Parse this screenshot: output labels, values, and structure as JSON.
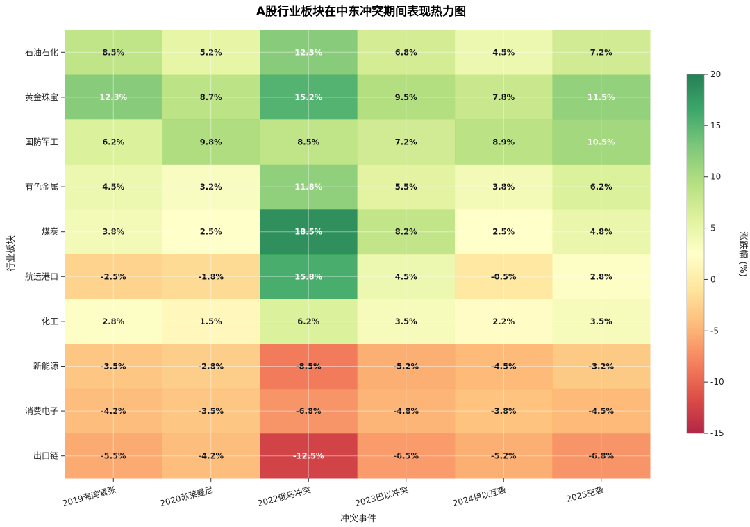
{
  "chart_data": {
    "type": "heatmap",
    "title": "A股行业板块在中东冲突期间表现热力图",
    "xlabel": "冲突事件",
    "ylabel": "行业板块",
    "colorbar_label": "涨跌幅 (%)",
    "colorbar_range": [
      -15,
      20
    ],
    "colorbar_ticks": [
      "20",
      "15",
      "10",
      "5",
      "0",
      "-5",
      "-10",
      "-15"
    ],
    "colorbar_tick_values": [
      20,
      15,
      10,
      5,
      0,
      -5,
      -10,
      -15
    ],
    "grid": true,
    "columns": [
      "2019海湾紧张",
      "2020苏莱曼尼",
      "2022俄乌冲突",
      "2023巴以冲突",
      "2024伊以互袭",
      "2025空袭"
    ],
    "rows": [
      "石油石化",
      "黄金珠宝",
      "国防军工",
      "有色金属",
      "煤炭",
      "航运港口",
      "化工",
      "新能源",
      "消费电子",
      "出口链"
    ],
    "values": [
      [
        8.5,
        5.2,
        12.3,
        6.8,
        4.5,
        7.2
      ],
      [
        12.3,
        8.7,
        15.2,
        9.5,
        7.8,
        11.5
      ],
      [
        6.2,
        9.8,
        8.5,
        7.2,
        8.9,
        10.5
      ],
      [
        4.5,
        3.2,
        11.8,
        5.5,
        3.8,
        6.2
      ],
      [
        3.8,
        2.5,
        18.5,
        8.2,
        2.5,
        4.8
      ],
      [
        -2.5,
        -1.8,
        15.8,
        4.5,
        -0.5,
        2.8
      ],
      [
        2.8,
        1.5,
        6.2,
        3.5,
        2.2,
        3.5
      ],
      [
        -3.5,
        -2.8,
        -8.5,
        -5.2,
        -4.5,
        -3.2
      ],
      [
        -4.2,
        -3.5,
        -6.8,
        -4.8,
        -3.8,
        -4.5
      ],
      [
        -5.5,
        -4.2,
        -12.5,
        -6.5,
        -5.2,
        -6.8
      ]
    ],
    "cell_labels": [
      [
        "8.5%",
        "5.2%",
        "12.3%",
        "6.8%",
        "4.5%",
        "7.2%"
      ],
      [
        "12.3%",
        "8.7%",
        "15.2%",
        "9.5%",
        "7.8%",
        "11.5%"
      ],
      [
        "6.2%",
        "9.8%",
        "8.5%",
        "7.2%",
        "8.9%",
        "10.5%"
      ],
      [
        "4.5%",
        "3.2%",
        "11.8%",
        "5.5%",
        "3.8%",
        "6.2%"
      ],
      [
        "3.8%",
        "2.5%",
        "18.5%",
        "8.2%",
        "2.5%",
        "4.8%"
      ],
      [
        "-2.5%",
        "-1.8%",
        "15.8%",
        "4.5%",
        "-0.5%",
        "2.8%"
      ],
      [
        "2.8%",
        "1.5%",
        "6.2%",
        "3.5%",
        "2.2%",
        "3.5%"
      ],
      [
        "-3.5%",
        "-2.8%",
        "-8.5%",
        "-5.2%",
        "-4.5%",
        "-3.2%"
      ],
      [
        "-4.2%",
        "-3.5%",
        "-6.8%",
        "-4.8%",
        "-3.8%",
        "-4.5%"
      ],
      [
        "-5.5%",
        "-4.2%",
        "-12.5%",
        "-6.5%",
        "-5.2%",
        "-6.8%"
      ]
    ],
    "colormap": "RdYlGn",
    "colormap_stops": [
      "#a50026",
      "#d73027",
      "#f46d43",
      "#fdae61",
      "#fee08b",
      "#ffffbf",
      "#d9ef8b",
      "#a6d96a",
      "#66bd63",
      "#1a9850",
      "#006837"
    ]
  }
}
